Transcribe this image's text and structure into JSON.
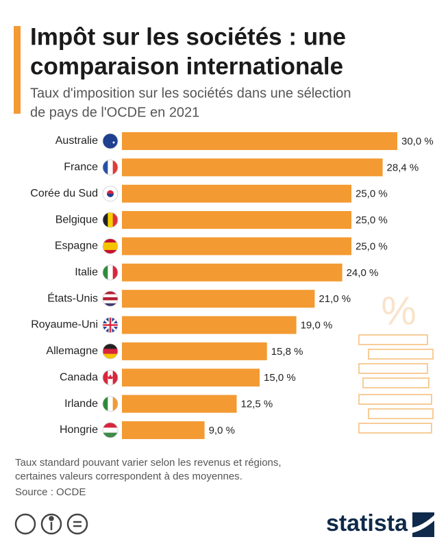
{
  "chart_data": {
    "type": "barh",
    "title": [
      "Impôt sur les sociétés : une",
      "comparaison internationale"
    ],
    "subtitle": [
      "Taux d'imposition sur les sociétés dans une sélection",
      "de pays de l'OCDE en 2021"
    ],
    "categories": [
      "Australie",
      "France",
      "Corée du Sud",
      "Belgique",
      "Espagne",
      "Italie",
      "États-Unis",
      "Royaume-Uni",
      "Allemagne",
      "Canada",
      "Irlande",
      "Hongrie"
    ],
    "values": [
      30.0,
      28.4,
      25.0,
      25.0,
      25.0,
      24.0,
      21.0,
      19.0,
      15.8,
      15.0,
      12.5,
      9.0
    ],
    "value_labels": [
      "30,0 %",
      "28,4 %",
      "25,0 %",
      "25,0 %",
      "25,0 %",
      "24,0 %",
      "21,0 %",
      "19,0 %",
      "15,8 %",
      "15,0 %",
      "12,5 %",
      "9,0 %"
    ],
    "color": "#f39a32",
    "notes": [
      "Taux standard pouvant varier selon les revenus et régions,",
      "certaines valeurs correspondent à des moyennes."
    ],
    "source": "Source : OCDE",
    "illustration_text": "%",
    "brand": "statista"
  }
}
